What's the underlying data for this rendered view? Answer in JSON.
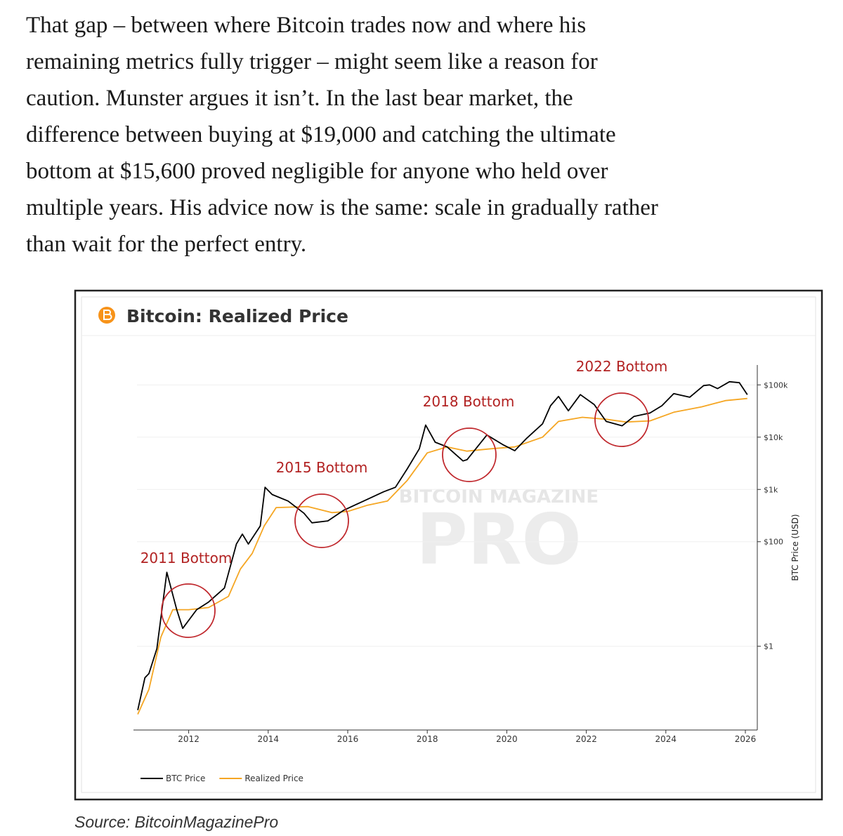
{
  "paragraph_lines": [
    "That gap – between where Bitcoin trades now and where his",
    "remaining metrics fully trigger – might seem like a reason for",
    "caution. Munster argues it isn’t. In the last bear market, the",
    "difference between buying at $19,000 and catching the ultimate",
    "bottom at $15,600 proved negligible for anyone who held over",
    "multiple years. His advice now is the same: scale in gradually rather",
    "than wait for the perfect entry."
  ],
  "chart_data": {
    "type": "line",
    "title": "Bitcoin: Realized Price",
    "y_label": "BTC Price (USD)",
    "watermark": [
      "BITCOIN MAGAZINE",
      "PRO"
    ],
    "annotations": [
      "2011 Bottom",
      "2015 Bottom",
      "2018 Bottom",
      "2022 Bottom"
    ],
    "xlim": [
      2010.7,
      2026.3
    ],
    "xticks": [
      2012,
      2014,
      2016,
      2018,
      2020,
      2022,
      2024,
      2026
    ],
    "ylim": [
      0.025,
      240000
    ],
    "log_scale": true,
    "grid": true,
    "legend": "bottom-left",
    "yticks": [
      {
        "value": 1,
        "label": "$1"
      },
      {
        "value": 100,
        "label": "$100"
      },
      {
        "value": 1000,
        "label": "$1k"
      },
      {
        "value": 10000,
        "label": "$10k"
      },
      {
        "value": 100000,
        "label": "$100k"
      }
    ],
    "series": [
      {
        "name": "BTC Price",
        "color": "#000000",
        "x": [
          2010.72,
          2010.9,
          2011.0,
          2011.2,
          2011.45,
          2011.7,
          2011.85,
          2012.2,
          2012.5,
          2012.9,
          2013.2,
          2013.35,
          2013.5,
          2013.8,
          2013.92,
          2014.1,
          2014.5,
          2014.9,
          2015.1,
          2015.5,
          2015.9,
          2016.5,
          2016.9,
          2017.2,
          2017.5,
          2017.8,
          2017.96,
          2018.2,
          2018.5,
          2018.9,
          2019.0,
          2019.5,
          2019.9,
          2020.2,
          2020.5,
          2020.9,
          2021.1,
          2021.3,
          2021.55,
          2021.85,
          2022.2,
          2022.5,
          2022.9,
          2023.2,
          2023.6,
          2023.9,
          2024.2,
          2024.6,
          2024.95,
          2025.1,
          2025.3,
          2025.6,
          2025.85,
          2026.05
        ],
        "values": [
          0.06,
          0.25,
          0.3,
          0.9,
          26,
          5,
          2.2,
          5,
          7,
          13,
          90,
          140,
          90,
          200,
          1100,
          800,
          600,
          350,
          230,
          250,
          400,
          650,
          900,
          1100,
          2500,
          6000,
          17000,
          8000,
          6500,
          3500,
          3700,
          11000,
          7200,
          5500,
          9500,
          18000,
          40000,
          60000,
          32000,
          65000,
          42000,
          20000,
          16500,
          25000,
          29000,
          40000,
          68000,
          58000,
          97000,
          100000,
          85000,
          115000,
          110000,
          65000
        ]
      },
      {
        "name": "Realized Price",
        "color": "#f5a623",
        "x": [
          2010.72,
          2011.0,
          2011.3,
          2011.6,
          2012.0,
          2012.5,
          2013.0,
          2013.3,
          2013.6,
          2013.9,
          2014.2,
          2015.0,
          2015.6,
          2016.0,
          2016.5,
          2017.0,
          2017.5,
          2018.0,
          2018.5,
          2019.0,
          2019.6,
          2020.2,
          2020.9,
          2021.3,
          2021.9,
          2022.5,
          2023.0,
          2023.6,
          2024.2,
          2024.9,
          2025.5,
          2026.05
        ],
        "values": [
          0.05,
          0.15,
          1.5,
          5,
          5,
          5.5,
          9,
          30,
          60,
          200,
          450,
          470,
          360,
          380,
          500,
          600,
          1500,
          5000,
          6500,
          5400,
          6000,
          6500,
          10000,
          20000,
          24000,
          22000,
          19500,
          20500,
          30000,
          38000,
          50000,
          55000
        ]
      }
    ]
  },
  "source": "Source: BitcoinMagazinePro"
}
